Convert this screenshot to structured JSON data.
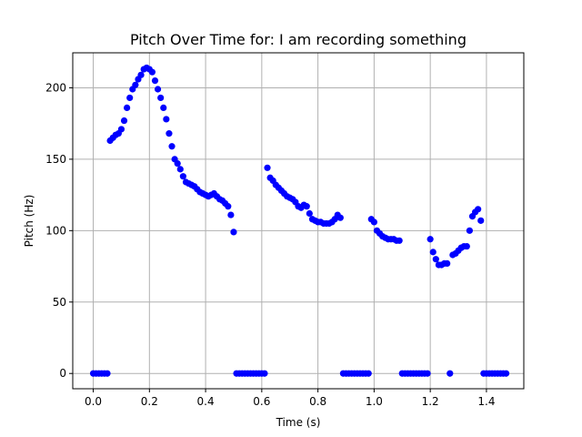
{
  "chart_data": {
    "type": "scatter",
    "title": "Pitch Over Time for: I am recording something",
    "xlabel": "Time (s)",
    "ylabel": "Pitch (Hz)",
    "xlim": [
      -0.073,
      1.533
    ],
    "ylim": [
      -10.7,
      224.5
    ],
    "xticks": [
      0.0,
      0.2,
      0.4,
      0.6,
      0.8,
      1.0,
      1.2,
      1.4
    ],
    "xtick_labels": [
      "0.0",
      "0.2",
      "0.4",
      "0.6",
      "0.8",
      "1.0",
      "1.2",
      "1.4"
    ],
    "yticks": [
      0,
      50,
      100,
      150,
      200
    ],
    "ytick_labels": [
      "0",
      "50",
      "100",
      "150",
      "200"
    ],
    "grid": true,
    "marker_color": "#0000ff",
    "points": [
      [
        0.0,
        0
      ],
      [
        0.01,
        0
      ],
      [
        0.02,
        0
      ],
      [
        0.03,
        0
      ],
      [
        0.04,
        0
      ],
      [
        0.05,
        0
      ],
      [
        0.06,
        163
      ],
      [
        0.07,
        165
      ],
      [
        0.08,
        167
      ],
      [
        0.09,
        168
      ],
      [
        0.1,
        171
      ],
      [
        0.11,
        177
      ],
      [
        0.12,
        186
      ],
      [
        0.13,
        193
      ],
      [
        0.14,
        199
      ],
      [
        0.15,
        202
      ],
      [
        0.16,
        206
      ],
      [
        0.17,
        209
      ],
      [
        0.18,
        213
      ],
      [
        0.19,
        214
      ],
      [
        0.2,
        213
      ],
      [
        0.21,
        211
      ],
      [
        0.22,
        205
      ],
      [
        0.23,
        199
      ],
      [
        0.24,
        193
      ],
      [
        0.25,
        186
      ],
      [
        0.26,
        178
      ],
      [
        0.27,
        168
      ],
      [
        0.28,
        159
      ],
      [
        0.29,
        150
      ],
      [
        0.3,
        147
      ],
      [
        0.31,
        143
      ],
      [
        0.32,
        138
      ],
      [
        0.33,
        134
      ],
      [
        0.34,
        133
      ],
      [
        0.35,
        132
      ],
      [
        0.36,
        131
      ],
      [
        0.37,
        129
      ],
      [
        0.38,
        127
      ],
      [
        0.39,
        126
      ],
      [
        0.4,
        125
      ],
      [
        0.41,
        124
      ],
      [
        0.42,
        125
      ],
      [
        0.43,
        126
      ],
      [
        0.44,
        124
      ],
      [
        0.45,
        122
      ],
      [
        0.46,
        121
      ],
      [
        0.47,
        119
      ],
      [
        0.48,
        117
      ],
      [
        0.49,
        111
      ],
      [
        0.5,
        99
      ],
      [
        0.51,
        0
      ],
      [
        0.52,
        0
      ],
      [
        0.53,
        0
      ],
      [
        0.54,
        0
      ],
      [
        0.55,
        0
      ],
      [
        0.56,
        0
      ],
      [
        0.57,
        0
      ],
      [
        0.58,
        0
      ],
      [
        0.59,
        0
      ],
      [
        0.6,
        0
      ],
      [
        0.61,
        0
      ],
      [
        0.62,
        144
      ],
      [
        0.63,
        137
      ],
      [
        0.64,
        135
      ],
      [
        0.65,
        132
      ],
      [
        0.66,
        130
      ],
      [
        0.67,
        128
      ],
      [
        0.68,
        126
      ],
      [
        0.69,
        124
      ],
      [
        0.7,
        123
      ],
      [
        0.71,
        122
      ],
      [
        0.72,
        120
      ],
      [
        0.73,
        117
      ],
      [
        0.74,
        116
      ],
      [
        0.75,
        118
      ],
      [
        0.76,
        117
      ],
      [
        0.77,
        112
      ],
      [
        0.78,
        108
      ],
      [
        0.79,
        107
      ],
      [
        0.8,
        106
      ],
      [
        0.81,
        106
      ],
      [
        0.82,
        105
      ],
      [
        0.83,
        105
      ],
      [
        0.84,
        105
      ],
      [
        0.85,
        106
      ],
      [
        0.86,
        108
      ],
      [
        0.87,
        111
      ],
      [
        0.88,
        109
      ],
      [
        0.89,
        0
      ],
      [
        0.9,
        0
      ],
      [
        0.91,
        0
      ],
      [
        0.92,
        0
      ],
      [
        0.93,
        0
      ],
      [
        0.94,
        0
      ],
      [
        0.95,
        0
      ],
      [
        0.96,
        0
      ],
      [
        0.97,
        0
      ],
      [
        0.98,
        0
      ],
      [
        0.99,
        108
      ],
      [
        1.0,
        106
      ],
      [
        1.01,
        100
      ],
      [
        1.02,
        98
      ],
      [
        1.03,
        96
      ],
      [
        1.04,
        95
      ],
      [
        1.05,
        94
      ],
      [
        1.06,
        94
      ],
      [
        1.07,
        94
      ],
      [
        1.08,
        93
      ],
      [
        1.09,
        93
      ],
      [
        1.1,
        0
      ],
      [
        1.11,
        0
      ],
      [
        1.12,
        0
      ],
      [
        1.13,
        0
      ],
      [
        1.14,
        0
      ],
      [
        1.15,
        0
      ],
      [
        1.16,
        0
      ],
      [
        1.17,
        0
      ],
      [
        1.18,
        0
      ],
      [
        1.19,
        0
      ],
      [
        1.2,
        94
      ],
      [
        1.21,
        85
      ],
      [
        1.22,
        80
      ],
      [
        1.23,
        76
      ],
      [
        1.24,
        76
      ],
      [
        1.25,
        77
      ],
      [
        1.26,
        77
      ],
      [
        1.27,
        0
      ],
      [
        1.28,
        83
      ],
      [
        1.29,
        84
      ],
      [
        1.3,
        86
      ],
      [
        1.31,
        88
      ],
      [
        1.32,
        89
      ],
      [
        1.33,
        89
      ],
      [
        1.34,
        100
      ],
      [
        1.35,
        110
      ],
      [
        1.36,
        113
      ],
      [
        1.37,
        115
      ],
      [
        1.38,
        107
      ],
      [
        1.39,
        0
      ],
      [
        1.4,
        0
      ],
      [
        1.41,
        0
      ],
      [
        1.42,
        0
      ],
      [
        1.43,
        0
      ],
      [
        1.44,
        0
      ],
      [
        1.45,
        0
      ],
      [
        1.46,
        0
      ],
      [
        1.47,
        0
      ]
    ]
  }
}
